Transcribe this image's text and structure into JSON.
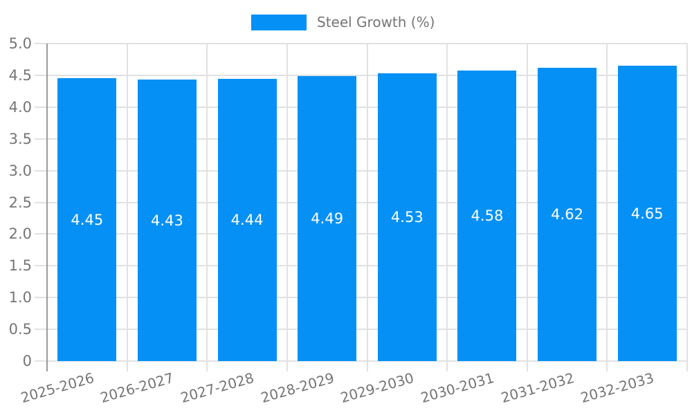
{
  "legend": {
    "series_label": "Steel Growth (%)",
    "position": "top-center"
  },
  "colors": {
    "bar": "#0590F5",
    "grid": "#E1E1E1",
    "axis": "#9A9A9A",
    "tick_label": "#757575",
    "value_label": "#FFFFFF",
    "background": "#FFFFFF"
  },
  "chart_data": {
    "type": "bar",
    "title": "",
    "xlabel": "",
    "ylabel": "",
    "categories": [
      "2025-2026",
      "2026-2027",
      "2027-2028",
      "2028-2029",
      "2029-2030",
      "2030-2031",
      "2031-2032",
      "2032-2033"
    ],
    "series": [
      {
        "name": "Steel Growth (%)",
        "values": [
          4.45,
          4.43,
          4.44,
          4.49,
          4.53,
          4.58,
          4.62,
          4.65
        ]
      }
    ],
    "value_labels": [
      "4.45",
      "4.43",
      "4.44",
      "4.49",
      "4.53",
      "4.58",
      "4.62",
      "4.65"
    ],
    "value_labels_inside_bars": true,
    "ylim": [
      0,
      5
    ],
    "ytick_step": 0.5,
    "y_tick_labels": [
      "0",
      "0.5",
      "1.0",
      "1.5",
      "2.0",
      "2.5",
      "3.0",
      "3.5",
      "4.0",
      "4.5",
      "5.0"
    ],
    "grid": true,
    "x_tick_rotation_deg": -16,
    "legend_position": "top-center"
  }
}
